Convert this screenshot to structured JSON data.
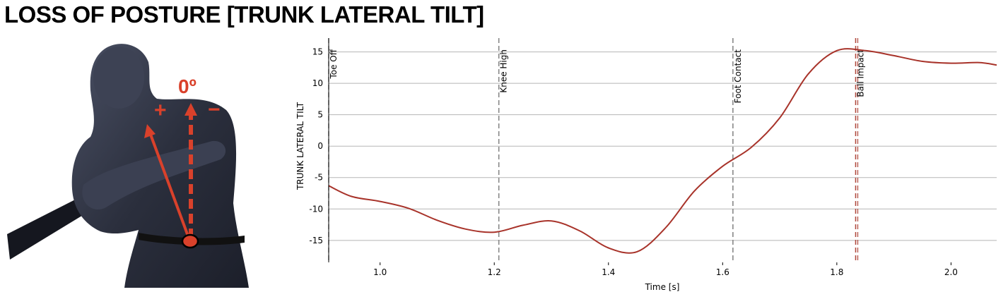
{
  "page": {
    "title": "LOSS OF POSTURE [TRUNK LATERAL TILT]"
  },
  "illustration": {
    "angle_label": "0º",
    "plus_sign": "+",
    "minus_sign": "−",
    "accent_color": "#d9412b",
    "figure_color": "#2b2f3d"
  },
  "chart_data": {
    "type": "line",
    "title": "",
    "xlabel": "Time [s]",
    "ylabel": "TRUNK LATERAL TILT",
    "xlim": [
      0.91,
      2.08
    ],
    "ylim": [
      -18.5,
      17.2
    ],
    "xticks": [
      1.0,
      1.2,
      1.4,
      1.6,
      1.8,
      2.0
    ],
    "xtick_labels": [
      "1.0",
      "1.2",
      "1.4",
      "1.6",
      "1.8",
      "2.0"
    ],
    "yticks": [
      15,
      10,
      5,
      0,
      -5,
      -10,
      -15
    ],
    "ytick_labels": [
      "15",
      "10",
      "5",
      "0",
      "-5",
      "-10",
      "-15"
    ],
    "grid": "horizontal",
    "line_color": "#a8332a",
    "series": [
      {
        "x": [
          0.91,
          0.95,
          1.0,
          1.05,
          1.1,
          1.15,
          1.2,
          1.25,
          1.3,
          1.35,
          1.4,
          1.45,
          1.5,
          1.55,
          1.6,
          1.65,
          1.7,
          1.75,
          1.8,
          1.85,
          1.9,
          1.95,
          2.0,
          2.05,
          2.08
        ],
        "y": [
          -6.3,
          -8.0,
          -8.8,
          -9.9,
          -11.8,
          -13.2,
          -13.7,
          -12.6,
          -11.9,
          -13.5,
          -16.2,
          -16.8,
          -13.0,
          -7.2,
          -3.2,
          -0.2,
          4.5,
          11.5,
          15.2,
          15.2,
          14.4,
          13.5,
          13.2,
          13.3,
          12.9
        ]
      }
    ],
    "events": [
      {
        "label": "Toe Off",
        "x": 0.91,
        "color": "#9b9b9b",
        "style": "dashed"
      },
      {
        "label": "Knee High",
        "x": 1.208,
        "color": "#888888",
        "style": "dashed"
      },
      {
        "label": "Foot Contact",
        "x": 1.618,
        "color": "#888888",
        "style": "dashed"
      },
      {
        "label": "Ball Impact",
        "x": 1.833,
        "color": "#b04a3e",
        "style": "dashed"
      }
    ]
  }
}
